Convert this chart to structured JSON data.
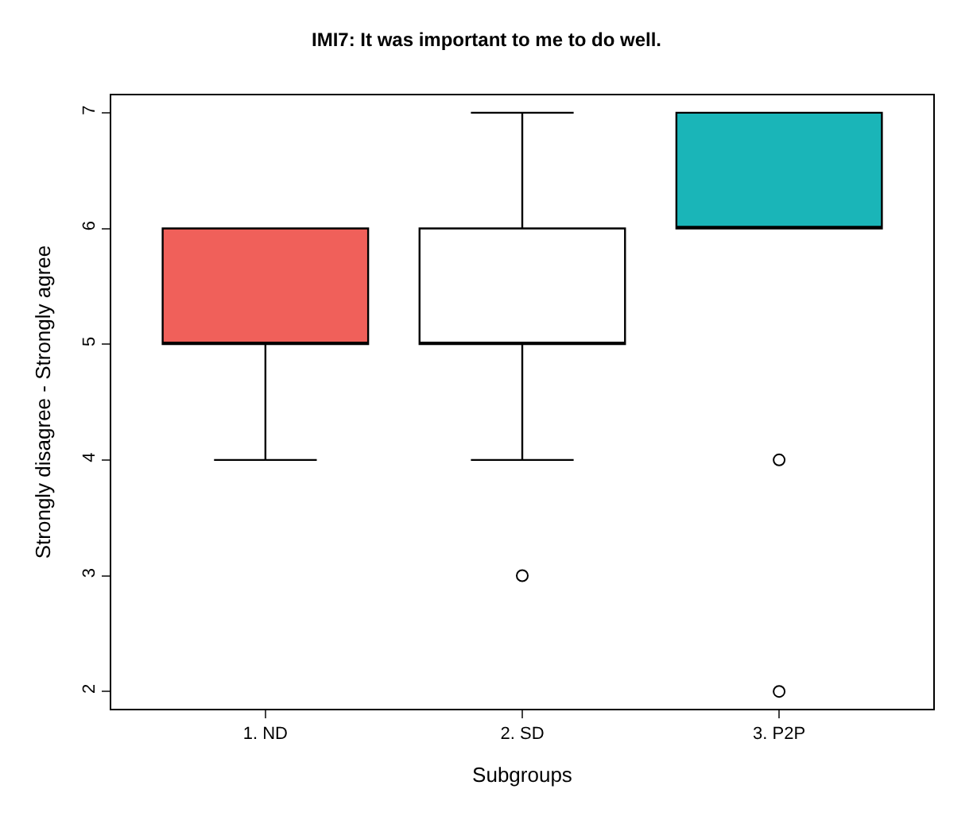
{
  "chart_data": {
    "type": "box",
    "title": "IMI7: It was important to me to do well.",
    "xlabel": "Subgroups",
    "ylabel": "Strongly disagree - Strongly agree",
    "categories": [
      "1. ND",
      "2. SD",
      "3. P2P"
    ],
    "colors": [
      "#f0605a",
      "#ffffff",
      "#1ab5b8"
    ],
    "boxes": [
      {
        "low": 4,
        "q1": 5,
        "median": 5,
        "q3": 6,
        "high": 6
      },
      {
        "low": 4,
        "q1": 5,
        "median": 5,
        "q3": 6,
        "high": 7,
        "outliers": [
          3
        ]
      },
      {
        "low": 6,
        "q1": 6,
        "median": 6,
        "q3": 7,
        "high": 7,
        "outliers": [
          4,
          2
        ]
      }
    ],
    "ylim": [
      1.85,
      7.15
    ],
    "yticks": [
      2,
      3,
      4,
      5,
      6,
      7
    ]
  }
}
